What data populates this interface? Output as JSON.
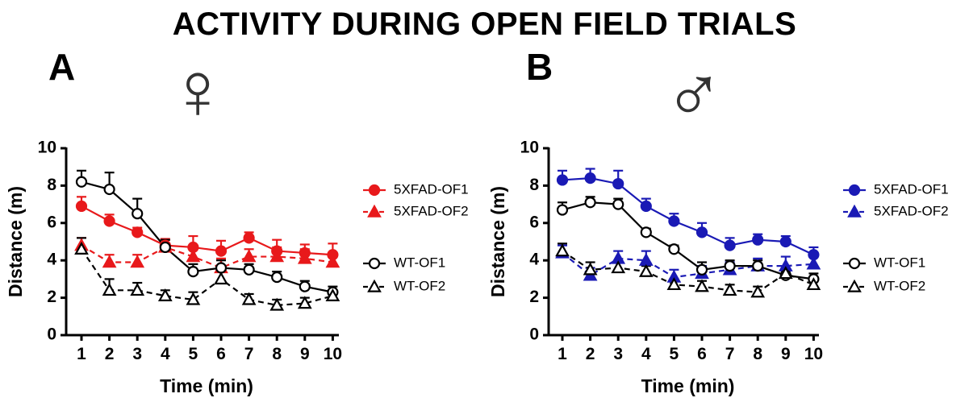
{
  "title": "ACTIVITY DURING OPEN FIELD TRIALS",
  "panels": [
    {
      "letter": "A",
      "sex_symbol": "♀"
    },
    {
      "letter": "B",
      "sex_symbol": "♂"
    }
  ],
  "chart_data": [
    {
      "type": "line",
      "panel": "A",
      "xlabel": "Time (min)",
      "ylabel": "Distance (m)",
      "x": [
        1,
        2,
        3,
        4,
        5,
        6,
        7,
        8,
        9,
        10
      ],
      "xlim": [
        1,
        10
      ],
      "ylim": [
        0,
        10
      ],
      "yticks": [
        0,
        2,
        4,
        6,
        8,
        10
      ],
      "grid": false,
      "legend_position": "right",
      "series": [
        {
          "name": "5XFAD-OF1",
          "color": "#e8191b",
          "marker": "circle",
          "filled": true,
          "dashed": false,
          "values": [
            6.9,
            6.1,
            5.5,
            4.8,
            4.7,
            4.5,
            5.2,
            4.5,
            4.4,
            4.3
          ],
          "errors": [
            0.5,
            0.35,
            0.25,
            0.35,
            0.6,
            0.55,
            0.3,
            0.6,
            0.45,
            0.6
          ]
        },
        {
          "name": "5XFAD-OF2",
          "color": "#e8191b",
          "marker": "triangle",
          "filled": true,
          "dashed": true,
          "values": [
            4.8,
            3.9,
            3.9,
            4.7,
            4.2,
            3.6,
            4.2,
            4.2,
            4.1,
            3.9
          ],
          "errors": [
            0.4,
            0.4,
            0.4,
            0.4,
            0.5,
            0.5,
            0.4,
            0.5,
            0.5,
            0.4
          ]
        },
        {
          "name": "WT-OF1",
          "color": "#000000",
          "marker": "circle",
          "filled": false,
          "dashed": false,
          "values": [
            8.2,
            7.8,
            6.5,
            4.7,
            3.4,
            3.6,
            3.5,
            3.1,
            2.6,
            2.3
          ],
          "errors": [
            0.6,
            0.9,
            0.8,
            0.4,
            0.4,
            0.4,
            0.3,
            0.3,
            0.3,
            0.3
          ]
        },
        {
          "name": "WT-OF2",
          "color": "#000000",
          "marker": "triangle",
          "filled": false,
          "dashed": true,
          "values": [
            4.6,
            2.4,
            2.4,
            2.1,
            1.9,
            3.0,
            1.9,
            1.6,
            1.7,
            2.1
          ],
          "errors": [
            0.6,
            0.6,
            0.4,
            0.3,
            0.4,
            0.5,
            0.3,
            0.3,
            0.3,
            0.3
          ]
        }
      ]
    },
    {
      "type": "line",
      "panel": "B",
      "xlabel": "Time (min)",
      "ylabel": "Distance (m)",
      "x": [
        1,
        2,
        3,
        4,
        5,
        6,
        7,
        8,
        9,
        10
      ],
      "xlim": [
        1,
        10
      ],
      "ylim": [
        0,
        10
      ],
      "yticks": [
        0,
        2,
        4,
        6,
        8,
        10
      ],
      "grid": false,
      "legend_position": "right",
      "series": [
        {
          "name": "5XFAD-OF1",
          "color": "#1a1ab5",
          "marker": "circle",
          "filled": true,
          "dashed": false,
          "values": [
            8.3,
            8.4,
            8.1,
            6.9,
            6.1,
            5.5,
            4.8,
            5.1,
            5.0,
            4.3
          ],
          "errors": [
            0.5,
            0.5,
            0.7,
            0.4,
            0.4,
            0.5,
            0.4,
            0.3,
            0.3,
            0.4
          ]
        },
        {
          "name": "5XFAD-OF2",
          "color": "#1a1ab5",
          "marker": "triangle",
          "filled": true,
          "dashed": true,
          "values": [
            4.4,
            3.2,
            4.1,
            4.0,
            3.1,
            3.3,
            3.5,
            3.7,
            3.7,
            3.8
          ],
          "errors": [
            0.4,
            0.4,
            0.4,
            0.5,
            0.4,
            0.4,
            0.4,
            0.4,
            0.5,
            0.5
          ]
        },
        {
          "name": "WT-OF1",
          "color": "#000000",
          "marker": "circle",
          "filled": false,
          "dashed": false,
          "values": [
            6.7,
            7.1,
            7.0,
            5.5,
            4.6,
            3.5,
            3.7,
            3.7,
            3.2,
            3.0
          ],
          "errors": [
            0.4,
            0.3,
            0.3,
            0.2,
            0.2,
            0.4,
            0.3,
            0.3,
            0.2,
            0.3
          ]
        },
        {
          "name": "WT-OF2",
          "color": "#000000",
          "marker": "triangle",
          "filled": false,
          "dashed": true,
          "values": [
            4.5,
            3.5,
            3.6,
            3.4,
            2.7,
            2.6,
            2.4,
            2.3,
            3.3,
            2.7
          ],
          "errors": [
            0.4,
            0.4,
            0.3,
            0.3,
            0.3,
            0.3,
            0.3,
            0.3,
            0.2,
            0.3
          ]
        }
      ]
    }
  ]
}
